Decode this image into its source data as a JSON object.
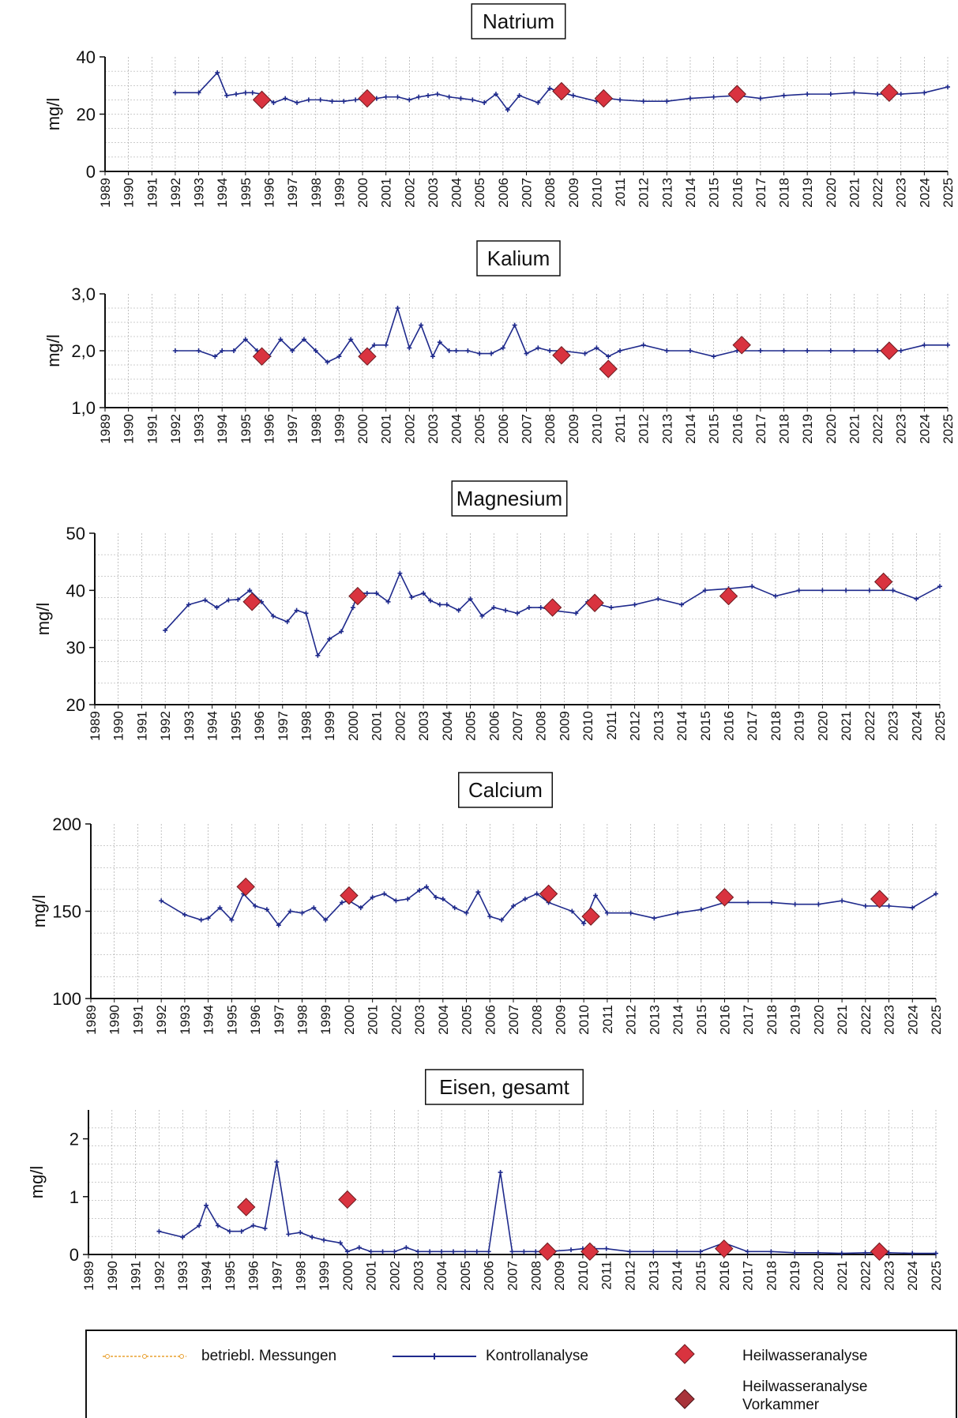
{
  "chart_data": [
    {
      "type": "line",
      "title": "Natrium",
      "ylabel": "mg/l",
      "ylim": [
        0,
        40
      ],
      "yticks": [
        "0",
        "20",
        "40"
      ],
      "xlim": [
        1989,
        2025
      ],
      "series": [
        {
          "name": "Kontrollanalyse",
          "x": [
            1992.0,
            1993.0,
            1993.8,
            1994.2,
            1994.6,
            1995.0,
            1995.3,
            1995.7,
            1996.2,
            1996.7,
            1997.2,
            1997.7,
            1998.2,
            1998.7,
            1999.2,
            1999.7,
            2000.2,
            2000.6,
            2001.0,
            2001.5,
            2002.0,
            2002.4,
            2002.8,
            2003.2,
            2003.7,
            2004.2,
            2004.7,
            2005.2,
            2005.7,
            2006.2,
            2006.7,
            2007.5,
            2008.0,
            2008.5,
            2009.0,
            2010.0,
            2010.5,
            2011.0,
            2012.0,
            2013.0,
            2014.0,
            2015.0,
            2016.0,
            2017.0,
            2018.0,
            2019.0,
            2020.0,
            2021.0,
            2022.0,
            2023.0,
            2024.0,
            2025.0
          ],
          "y": [
            27.5,
            27.5,
            34.5,
            26.5,
            27.0,
            27.5,
            27.5,
            27.0,
            24.0,
            25.5,
            24.0,
            25.0,
            25.0,
            24.5,
            24.5,
            25.0,
            25.5,
            25.5,
            26.0,
            26.0,
            25.0,
            26.0,
            26.5,
            27.0,
            26.0,
            25.5,
            25.0,
            24.0,
            27.0,
            21.5,
            26.5,
            24.0,
            29.0,
            27.5,
            26.5,
            24.5,
            25.5,
            25.0,
            24.5,
            24.5,
            25.5,
            26.0,
            26.5,
            25.5,
            26.5,
            27.0,
            27.0,
            27.5,
            27.0,
            27.0,
            27.5,
            29.5
          ]
        },
        {
          "name": "Heilwasseranalyse",
          "x": [
            1995.7,
            2000.2,
            2008.5,
            2010.3,
            2016.0,
            2022.5
          ],
          "y": [
            25.0,
            25.5,
            28.0,
            25.5,
            27.0,
            27.5
          ]
        }
      ]
    },
    {
      "type": "line",
      "title": "Kalium",
      "ylabel": "mg/l",
      "ylim": [
        1.0,
        3.0
      ],
      "yticks": [
        "1,0",
        "2,0",
        "3,0"
      ],
      "xlim": [
        1989,
        2025
      ],
      "series": [
        {
          "name": "Kontrollanalyse",
          "x": [
            1992.0,
            1993.0,
            1993.7,
            1994.0,
            1994.5,
            1995.0,
            1995.5,
            1996.0,
            1996.5,
            1997.0,
            1997.5,
            1998.0,
            1998.5,
            1999.0,
            1999.5,
            2000.0,
            2000.5,
            2001.0,
            2001.5,
            2002.0,
            2002.5,
            2003.0,
            2003.3,
            2003.7,
            2004.0,
            2004.5,
            2005.0,
            2005.5,
            2006.0,
            2006.5,
            2007.0,
            2007.5,
            2008.0,
            2008.5,
            2009.5,
            2010.0,
            2010.5,
            2011.0,
            2012.0,
            2013.0,
            2014.0,
            2015.0,
            2016.0,
            2017.0,
            2018.0,
            2019.0,
            2020.0,
            2021.0,
            2022.0,
            2023.0,
            2024.0,
            2025.0
          ],
          "y": [
            2.0,
            2.0,
            1.9,
            2.0,
            2.0,
            2.2,
            2.0,
            1.9,
            2.2,
            2.0,
            2.2,
            2.0,
            1.8,
            1.9,
            2.2,
            1.9,
            2.1,
            2.1,
            2.75,
            2.05,
            2.45,
            1.9,
            2.15,
            2.0,
            2.0,
            2.0,
            1.95,
            1.95,
            2.05,
            2.45,
            1.95,
            2.05,
            2.0,
            2.0,
            1.95,
            2.05,
            1.9,
            2.0,
            2.1,
            2.0,
            2.0,
            1.9,
            2.0,
            2.0,
            2.0,
            2.0,
            2.0,
            2.0,
            2.0,
            2.0,
            2.1,
            2.1
          ]
        },
        {
          "name": "Heilwasseranalyse",
          "x": [
            1995.7,
            2000.2,
            2008.5,
            2010.5,
            2016.2,
            2022.5
          ],
          "y": [
            1.9,
            1.9,
            1.92,
            1.68,
            2.1,
            2.0
          ]
        }
      ]
    },
    {
      "type": "line",
      "title": "Magnesium",
      "ylabel": "mg/l",
      "ylim": [
        20,
        50
      ],
      "yticks": [
        "20",
        "30",
        "40",
        "50"
      ],
      "xlim": [
        1989,
        2025
      ],
      "series": [
        {
          "name": "Kontrollanalyse",
          "x": [
            1992.0,
            1993.0,
            1993.7,
            1994.2,
            1994.7,
            1995.1,
            1995.6,
            1996.1,
            1996.6,
            1997.2,
            1997.6,
            1998.0,
            1998.5,
            1999.0,
            1999.5,
            2000.0,
            2000.2,
            2000.6,
            2001.0,
            2001.5,
            2002.0,
            2002.5,
            2003.0,
            2003.3,
            2003.7,
            2004.0,
            2004.5,
            2005.0,
            2005.5,
            2006.0,
            2006.5,
            2007.0,
            2007.5,
            2008.0,
            2008.5,
            2009.5,
            2010.0,
            2010.5,
            2011.0,
            2012.0,
            2013.0,
            2014.0,
            2015.0,
            2016.0,
            2017.0,
            2018.0,
            2019.0,
            2020.0,
            2021.0,
            2022.0,
            2023.0,
            2024.0,
            2025.0
          ],
          "y": [
            33.0,
            37.5,
            38.3,
            37.0,
            38.3,
            38.4,
            40.0,
            38.0,
            35.5,
            34.5,
            36.5,
            36.0,
            28.6,
            31.5,
            32.8,
            37.0,
            39.5,
            39.5,
            39.5,
            38.0,
            43.0,
            38.8,
            39.5,
            38.2,
            37.5,
            37.5,
            36.5,
            38.5,
            35.5,
            37.0,
            36.5,
            36.0,
            37.0,
            37.0,
            36.5,
            36.0,
            38.0,
            37.5,
            37.0,
            37.5,
            38.5,
            37.5,
            40.0,
            40.3,
            40.7,
            39.0,
            40.0,
            40.0,
            40.0,
            40.0,
            40.0,
            38.5,
            40.7
          ]
        },
        {
          "name": "Heilwasseranalyse",
          "x": [
            1995.7,
            2000.2,
            2008.5,
            2010.3,
            2016.0,
            2022.6
          ],
          "y": [
            38.0,
            39.0,
            37.0,
            37.8,
            39.0,
            41.5
          ]
        }
      ]
    },
    {
      "type": "line",
      "title": "Calcium",
      "ylabel": "mg/l",
      "ylim": [
        100,
        200
      ],
      "yticks": [
        "100",
        "150",
        "200"
      ],
      "xlim": [
        1989,
        2025
      ],
      "series": [
        {
          "name": "Kontrollanalyse",
          "x": [
            1992.0,
            1993.0,
            1993.7,
            1994.0,
            1994.5,
            1995.0,
            1995.5,
            1996.0,
            1996.5,
            1997.0,
            1997.5,
            1998.0,
            1998.5,
            1999.0,
            1999.7,
            2000.0,
            2000.5,
            2001.0,
            2001.5,
            2002.0,
            2002.5,
            2003.0,
            2003.3,
            2003.7,
            2004.0,
            2004.5,
            2005.0,
            2005.5,
            2006.0,
            2006.5,
            2007.0,
            2007.5,
            2008.0,
            2008.5,
            2009.5,
            2010.0,
            2010.5,
            2011.0,
            2012.0,
            2013.0,
            2014.0,
            2015.0,
            2016.0,
            2017.0,
            2018.0,
            2019.0,
            2020.0,
            2021.0,
            2022.0,
            2023.0,
            2024.0,
            2025.0
          ],
          "y": [
            156,
            148,
            145,
            146,
            152,
            145,
            160,
            153,
            151,
            142,
            150,
            149,
            152,
            145,
            155,
            156,
            152,
            158,
            160,
            156,
            157,
            162,
            164,
            158,
            157,
            152,
            149,
            161,
            147,
            145,
            153,
            157,
            160,
            155,
            150,
            143,
            159,
            149,
            149,
            146,
            149,
            151,
            155,
            155,
            155,
            154,
            154,
            156,
            153,
            153,
            152,
            160
          ]
        },
        {
          "name": "Heilwasseranalyse",
          "x": [
            1995.6,
            2000.0,
            2008.5,
            2010.3,
            2016.0,
            2022.6
          ],
          "y": [
            164,
            159,
            160,
            147,
            158,
            157
          ]
        }
      ]
    },
    {
      "type": "line",
      "title": "Eisen, gesamt",
      "ylabel": "mg/l",
      "ylim": [
        0,
        2.5
      ],
      "yticks": [
        "0",
        "1",
        "2"
      ],
      "xlim": [
        1989,
        2025
      ],
      "series": [
        {
          "name": "Kontrollanalyse",
          "x": [
            1992.0,
            1993.0,
            1993.7,
            1994.0,
            1994.5,
            1995.0,
            1995.5,
            1996.0,
            1996.5,
            1997.0,
            1997.5,
            1998.0,
            1998.5,
            1999.0,
            1999.7,
            2000.0,
            2000.5,
            2001.0,
            2001.5,
            2002.0,
            2002.5,
            2003.0,
            2003.5,
            2004.0,
            2004.5,
            2005.0,
            2005.5,
            2006.0,
            2006.5,
            2007.0,
            2007.5,
            2008.0,
            2008.5,
            2009.5,
            2010.0,
            2010.5,
            2011.0,
            2012.0,
            2013.0,
            2014.0,
            2015.0,
            2016.0,
            2017.0,
            2018.0,
            2019.0,
            2020.0,
            2021.0,
            2022.0,
            2023.0,
            2024.0,
            2025.0
          ],
          "y": [
            0.4,
            0.3,
            0.5,
            0.85,
            0.5,
            0.4,
            0.4,
            0.5,
            0.45,
            1.6,
            0.35,
            0.38,
            0.3,
            0.25,
            0.2,
            0.05,
            0.12,
            0.05,
            0.05,
            0.05,
            0.12,
            0.05,
            0.05,
            0.05,
            0.05,
            0.05,
            0.05,
            0.05,
            1.42,
            0.05,
            0.05,
            0.05,
            0.05,
            0.08,
            0.1,
            0.1,
            0.1,
            0.05,
            0.05,
            0.05,
            0.05,
            0.2,
            0.05,
            0.05,
            0.03,
            0.03,
            0.02,
            0.03,
            0.03,
            0.02,
            0.02
          ]
        },
        {
          "name": "Heilwasseranalyse",
          "x": [
            1995.7,
            2000.0,
            2008.5,
            2010.3,
            2016.0,
            2022.6
          ],
          "y": [
            0.82,
            0.95,
            0.05,
            0.05,
            0.1,
            0.05
          ]
        }
      ]
    }
  ],
  "legend": {
    "betriebl": "betriebl. Messungen",
    "kontroll": "Kontrollanalyse",
    "heil": "Heilwasseranalyse",
    "heil_vk_line1": "Heilwasseranalyse",
    "heil_vk_line2": "Vorkammer"
  },
  "colors": {
    "line": "#1f2a8c",
    "diamond": "#d9333f",
    "diamond_vk": "#a8333a",
    "betriebl": "#e8a030",
    "grid": "#9a9a9a"
  }
}
